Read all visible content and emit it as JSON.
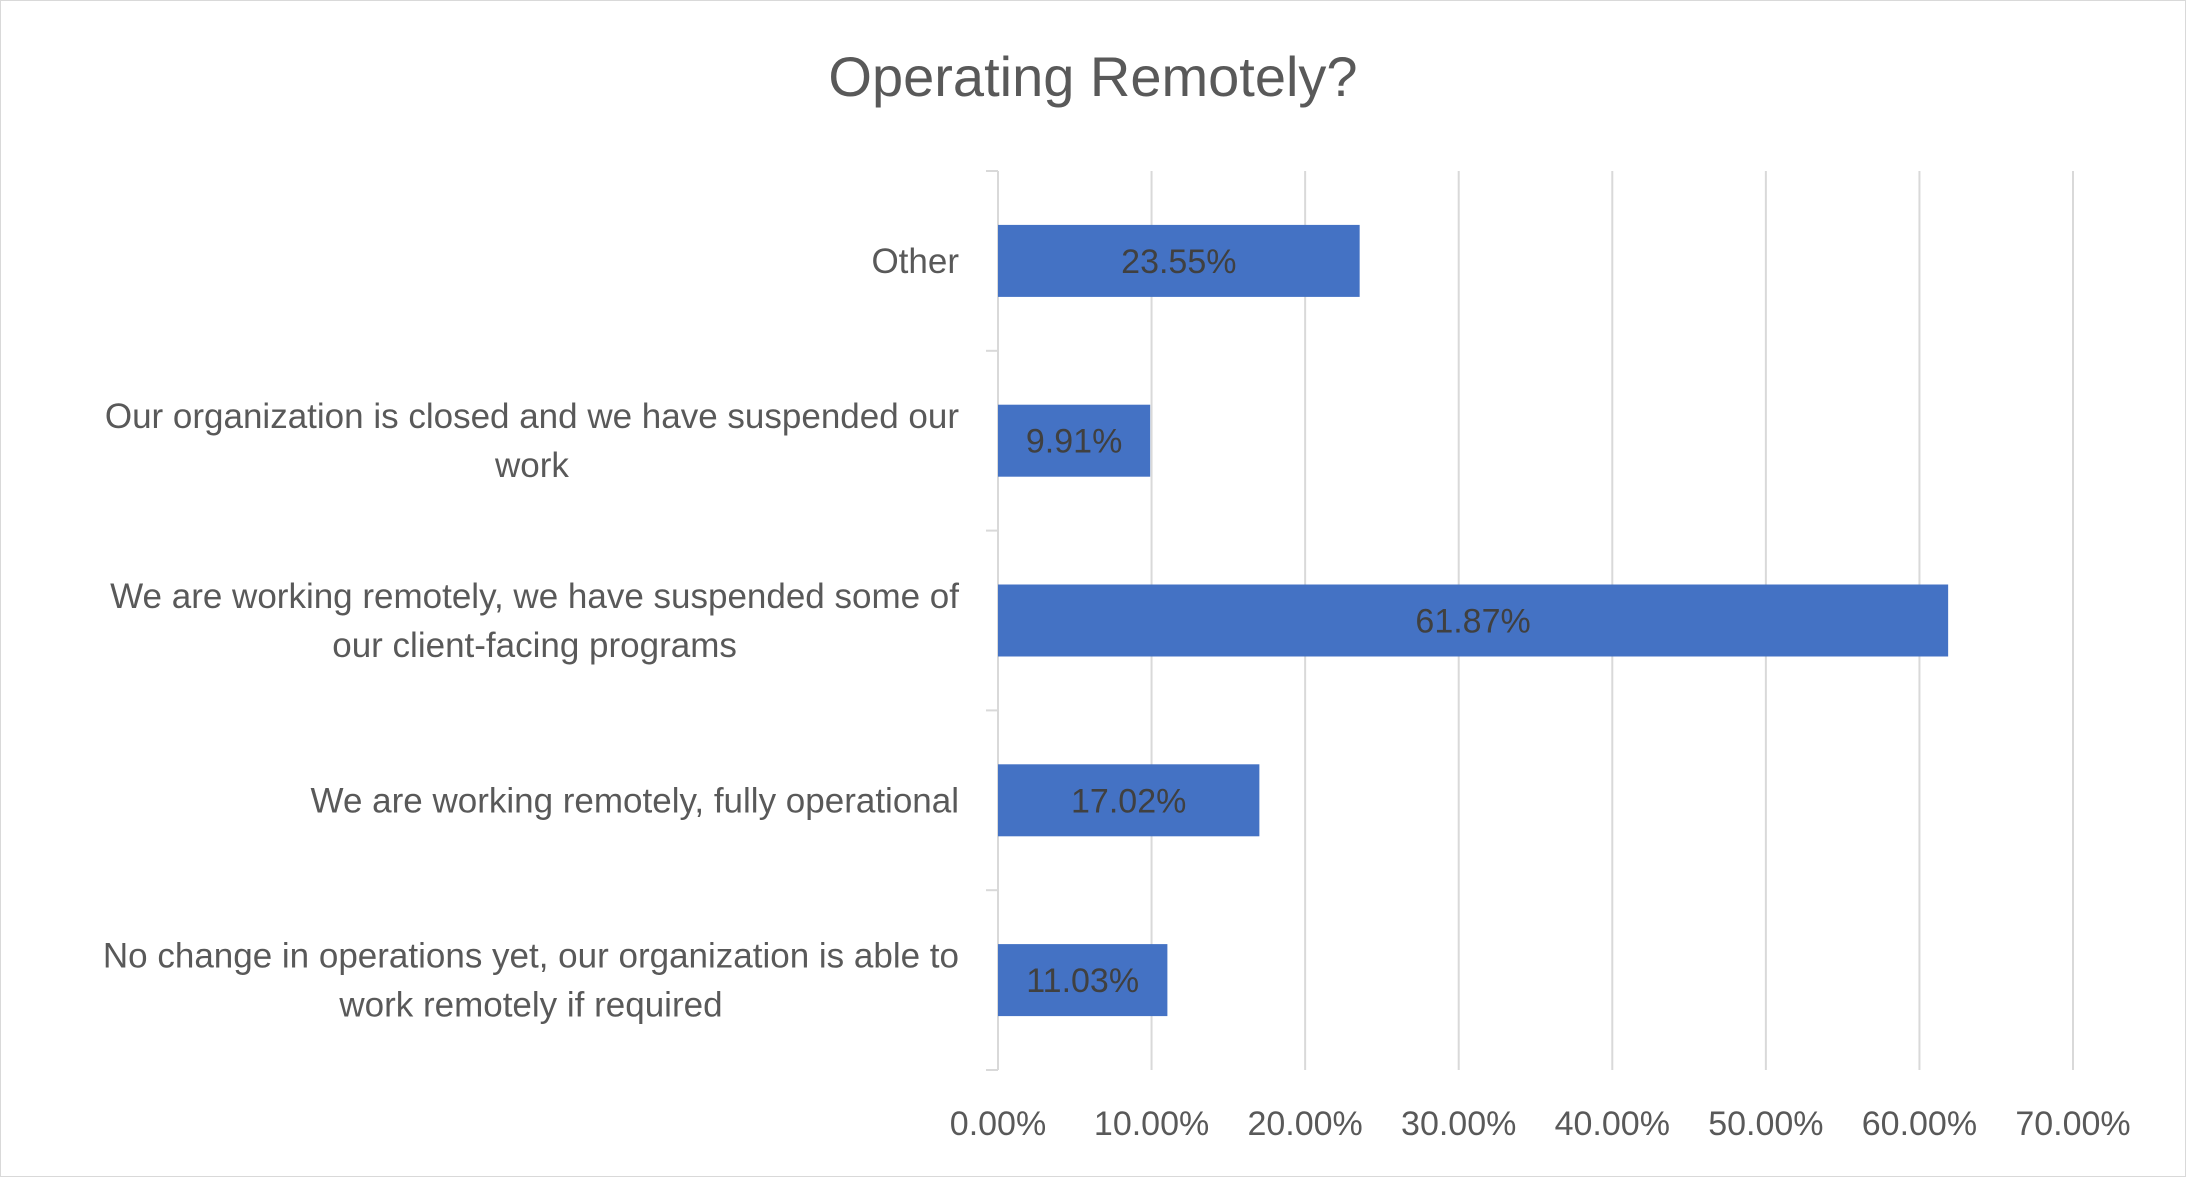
{
  "chart_data": {
    "type": "bar",
    "orientation": "horizontal",
    "title": "Operating Remotely?",
    "categories": [
      "Other",
      "Our organization is closed and we have suspended our work",
      "We are working remotely, we have suspended some of our client-facing programs",
      "We are working remotely, fully operational",
      "No change in operations yet, our organization is able to work remotely if required"
    ],
    "category_lines": [
      [
        "Other"
      ],
      [
        "Our organization is closed and we have suspended our",
        "work"
      ],
      [
        "We are working remotely, we have suspended some of",
        "our client-facing programs"
      ],
      [
        "We are working remotely, fully operational"
      ],
      [
        "No change in operations yet, our organization is able to",
        "work remotely if required"
      ]
    ],
    "values": [
      23.55,
      9.91,
      61.87,
      17.02,
      11.03
    ],
    "data_labels": [
      "23.55%",
      "9.91%",
      "61.87%",
      "17.02%",
      "11.03%"
    ],
    "x_ticks": [
      "0.00%",
      "10.00%",
      "20.00%",
      "30.00%",
      "40.00%",
      "50.00%",
      "60.00%",
      "70.00%"
    ],
    "xlim": [
      0,
      70
    ],
    "xlabel": "",
    "ylabel": "",
    "grid": true,
    "legend": "none",
    "colors": {
      "bar": "#4472c4",
      "grid": "#d9d9d9",
      "text": "#595959",
      "bar_label": "#404040"
    }
  }
}
